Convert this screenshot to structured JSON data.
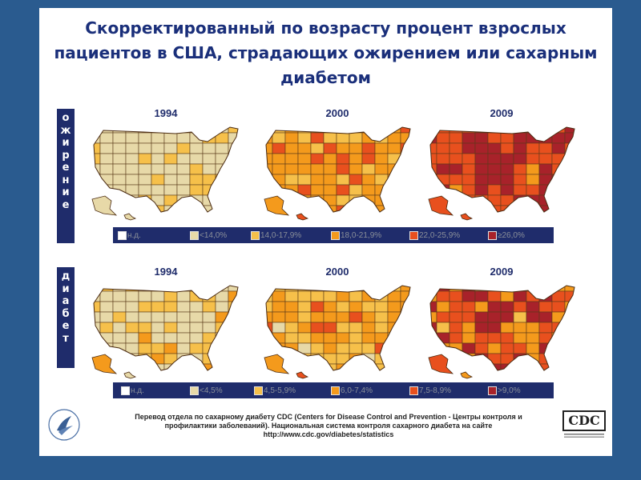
{
  "title": "Скорректированный по возрасту процент взрослых пациентов в США, страдающих ожирением или сахарным диабетом",
  "sections": [
    {
      "label_letters": [
        "о",
        "ж",
        "и",
        "р",
        "е",
        "н",
        "и",
        "е"
      ],
      "years": [
        "1994",
        "2000",
        "2009"
      ],
      "legend": [
        {
          "label": "н.д.",
          "color": "#ffffff"
        },
        {
          "label": "<14,0%",
          "color": "#e7d9a8"
        },
        {
          "label": "14,0-17,9%",
          "color": "#f6c04a"
        },
        {
          "label": "18,0-21,9%",
          "color": "#f49a1c"
        },
        {
          "label": "22,0-25,9%",
          "color": "#e8501e"
        },
        {
          "label": "≥26,0%",
          "color": "#a8222a"
        }
      ]
    },
    {
      "label_letters": [
        "д",
        "и",
        "а",
        "б",
        "е",
        "т"
      ],
      "years": [
        "1994",
        "2000",
        "2009"
      ],
      "legend": [
        {
          "label": "н.д.",
          "color": "#ffffff"
        },
        {
          "label": "<4,5%",
          "color": "#e7d9a8"
        },
        {
          "label": "4,5-5,9%",
          "color": "#f6c04a"
        },
        {
          "label": "6,0-7,4%",
          "color": "#f49a1c"
        },
        {
          "label": "7,5-8,9%",
          "color": "#e8501e"
        },
        {
          "label": ">9,0%",
          "color": "#a8222a"
        }
      ]
    }
  ],
  "footer": "Перевод отдела по сахарному диабету CDC (Centers for Disease Control and Prevention - Центры контроля и профилактики заболеваний). Национальная система контроля сахарного диабета на сайте http://www.cdc.gov/diabetes/statistics",
  "logo_text": "CDC"
}
